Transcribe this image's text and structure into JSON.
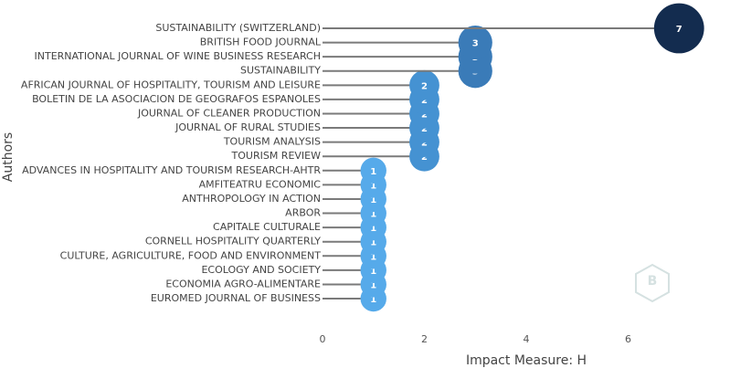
{
  "chart_data": {
    "type": "lollipop",
    "x_label": "Impact Measure: H",
    "y_label": "Authors",
    "categories": [
      "SUSTAINABILITY (SWITZERLAND)",
      "BRITISH FOOD JOURNAL",
      "INTERNATIONAL JOURNAL OF WINE BUSINESS RESEARCH",
      "SUSTAINABILITY",
      "AFRICAN JOURNAL OF HOSPITALITY, TOURISM AND LEISURE",
      "BOLETIN DE LA ASOCIACION DE GEOGRAFOS ESPANOLES",
      "JOURNAL OF CLEANER PRODUCTION",
      "JOURNAL OF RURAL STUDIES",
      "TOURISM ANALYSIS",
      "TOURISM REVIEW",
      "ADVANCES IN HOSPITALITY AND TOURISM RESEARCH-AHTR",
      "AMFITEATRU ECONOMIC",
      "ANTHROPOLOGY IN ACTION",
      "ARBOR",
      "CAPITALE CULTURALE",
      "CORNELL HOSPITALITY QUARTERLY",
      "CULTURE, AGRICULTURE, FOOD AND ENVIRONMENT",
      "ECOLOGY AND SOCIETY",
      "ECONOMIA AGRO-ALIMENTARE",
      "EUROMED JOURNAL OF BUSINESS"
    ],
    "values": [
      7,
      3,
      3,
      3,
      2,
      2,
      2,
      2,
      2,
      2,
      1,
      1,
      1,
      1,
      1,
      1,
      1,
      1,
      1,
      1
    ],
    "colors": [
      "#132c4f",
      "#3a7bb8",
      "#3a7bb8",
      "#3a7bb8",
      "#4592d2",
      "#4592d2",
      "#4592d2",
      "#4592d2",
      "#4592d2",
      "#4592d2",
      "#56aaea",
      "#56aaea",
      "#56aaea",
      "#56aaea",
      "#56aaea",
      "#56aaea",
      "#56aaea",
      "#56aaea",
      "#56aaea",
      "#56aaea"
    ],
    "stem_color": "#7a7a7a",
    "xlim": [
      0,
      8
    ],
    "xticks": [
      0,
      2,
      4,
      6
    ],
    "grid": false
  }
}
